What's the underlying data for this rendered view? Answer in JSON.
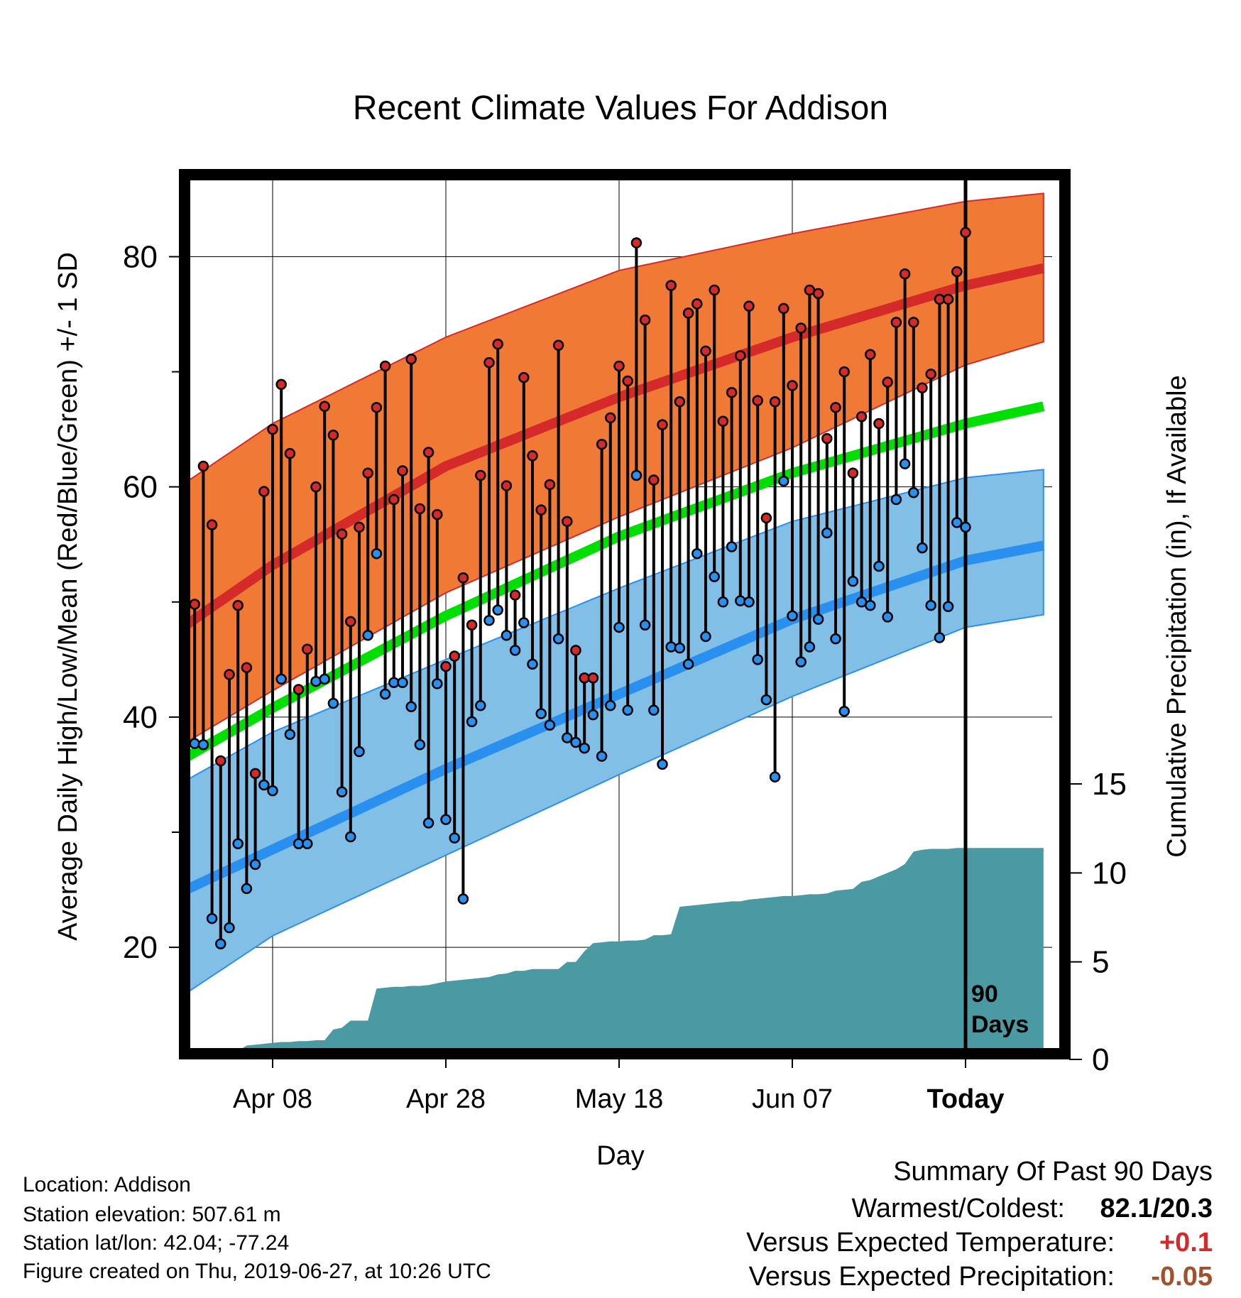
{
  "chart_data": {
    "type": "line",
    "title": "Recent Climate Values For Addison",
    "xlabel": "Day",
    "ylabel_left": "Average Daily High/Low/Mean (Red/Blue/Green) +/- 1 SD",
    "ylabel_right": "Cumulative Precipitation (in), If Available",
    "x_range_days": [
      -90,
      10
    ],
    "x_ticks": [
      {
        "day": -80,
        "label": "Apr 08"
      },
      {
        "day": -60,
        "label": "Apr 28"
      },
      {
        "day": -40,
        "label": "May 18"
      },
      {
        "day": -20,
        "label": "Jun 07"
      },
      {
        "day": 0,
        "label": "Today"
      }
    ],
    "ylim_temp": [
      11,
      87
    ],
    "y_ticks_temp": [
      20,
      40,
      60,
      80
    ],
    "ylim_precip": [
      0,
      15
    ],
    "y_ticks_precip": [
      0,
      5,
      10,
      15
    ],
    "today_marker": {
      "day": 0,
      "label_line1": "90",
      "label_line2": "Days"
    },
    "normal_band_days": [
      -90,
      -80,
      -60,
      -40,
      -20,
      0,
      9
    ],
    "normal_high_mean": [
      48.0,
      53.2,
      61.8,
      67.8,
      73.0,
      77.5,
      79.0
    ],
    "normal_high_upper": [
      60.4,
      65.5,
      73.0,
      78.8,
      82.0,
      84.8,
      85.5
    ],
    "normal_high_lower": [
      37.8,
      42.3,
      50.8,
      57.4,
      63.4,
      70.6,
      72.6
    ],
    "normal_mean": [
      36.5,
      40.8,
      48.8,
      55.7,
      61.2,
      65.5,
      67.0
    ],
    "normal_low_mean": [
      25.0,
      28.5,
      35.5,
      42.0,
      48.5,
      53.6,
      54.9
    ],
    "normal_low_upper": [
      34.5,
      38.7,
      45.0,
      51.2,
      57.0,
      60.8,
      61.5
    ],
    "normal_low_lower": [
      16.0,
      21.0,
      28.0,
      35.0,
      41.8,
      47.8,
      48.9
    ],
    "daily_days": [
      -89,
      -88,
      -87,
      -86,
      -85,
      -84,
      -83,
      -82,
      -81,
      -80,
      -79,
      -78,
      -77,
      -76,
      -75,
      -74,
      -73,
      -72,
      -71,
      -70,
      -69,
      -68,
      -67,
      -66,
      -65,
      -64,
      -63,
      -62,
      -61,
      -60,
      -59,
      -58,
      -57,
      -56,
      -55,
      -54,
      -53,
      -52,
      -51,
      -50,
      -49,
      -48,
      -47,
      -46,
      -45,
      -44,
      -43,
      -42,
      -41,
      -40,
      -39,
      -38,
      -37,
      -36,
      -35,
      -34,
      -33,
      -32,
      -31,
      -30,
      -29,
      -28,
      -27,
      -26,
      -25,
      -24,
      -23,
      -22,
      -21,
      -20,
      -19,
      -18,
      -17,
      -16,
      -15,
      -14,
      -13,
      -12,
      -11,
      -10,
      -9,
      -8,
      -7,
      -6,
      -5,
      -4,
      -3,
      -2,
      -1,
      0
    ],
    "daily_high": [
      49.8,
      61.8,
      56.7,
      36.2,
      43.7,
      49.7,
      44.3,
      35.1,
      59.6,
      65.0,
      68.9,
      62.9,
      42.4,
      45.9,
      60.0,
      67.0,
      64.5,
      55.9,
      48.3,
      56.5,
      61.2,
      66.9,
      70.5,
      58.9,
      61.4,
      71.1,
      58.1,
      63.0,
      57.6,
      44.4,
      45.3,
      52.1,
      48.0,
      61.0,
      70.8,
      72.4,
      60.1,
      50.6,
      69.5,
      62.7,
      58.0,
      60.2,
      72.3,
      57.0,
      45.8,
      43.4,
      43.4,
      63.7,
      66.0,
      70.5,
      69.2,
      81.2,
      74.5,
      60.6,
      65.4,
      77.5,
      67.4,
      75.1,
      75.9,
      71.8,
      77.1,
      65.7,
      68.2,
      71.4,
      75.7,
      67.5,
      57.3,
      67.4,
      75.5,
      68.8,
      73.8,
      77.1,
      76.8,
      64.2,
      66.9,
      70.0,
      61.2,
      66.1,
      71.5,
      65.5,
      69.1,
      74.3,
      78.5,
      74.3,
      68.6,
      69.8,
      76.3,
      76.3,
      78.7,
      82.1
    ],
    "daily_low": [
      37.7,
      37.6,
      22.5,
      20.3,
      21.7,
      29.0,
      25.1,
      27.2,
      34.1,
      33.6,
      43.3,
      38.5,
      29.0,
      29.0,
      43.1,
      43.3,
      41.2,
      33.5,
      29.6,
      37.0,
      47.1,
      54.2,
      42.0,
      43.0,
      43.0,
      40.9,
      37.6,
      30.8,
      42.9,
      31.1,
      29.5,
      24.2,
      39.6,
      41.0,
      48.4,
      49.3,
      47.1,
      45.8,
      48.2,
      44.6,
      40.3,
      39.3,
      46.8,
      38.2,
      37.8,
      37.3,
      40.2,
      36.6,
      41.0,
      47.8,
      40.6,
      61.0,
      48.0,
      40.6,
      35.9,
      46.1,
      46.0,
      44.6,
      54.2,
      47.0,
      52.2,
      50.0,
      54.8,
      50.1,
      50.0,
      45.0,
      41.5,
      34.8,
      60.5,
      48.8,
      44.8,
      46.1,
      48.5,
      56.0,
      46.8,
      40.5,
      51.8,
      50.0,
      49.7,
      53.1,
      48.7,
      58.9,
      62.0,
      59.5,
      54.7,
      49.7,
      46.9,
      49.6,
      56.9,
      56.5
    ],
    "precip_days": [
      -90,
      -84,
      -83,
      -82,
      -81,
      -80,
      -79,
      -78,
      -77,
      -76,
      -75,
      -74,
      -73,
      -72,
      -71,
      -70,
      -69,
      -68,
      -67,
      -66,
      -65,
      -64,
      -63,
      -62,
      -61,
      -60,
      -59,
      -58,
      -57,
      -56,
      -55,
      -54,
      -53,
      -52,
      -51,
      -50,
      -49,
      -48,
      -47,
      -46,
      -45,
      -44,
      -43,
      -42,
      -41,
      -40,
      -39,
      -38,
      -37,
      -36,
      -35,
      -34,
      -33,
      -32,
      -31,
      -30,
      -29,
      -28,
      -27,
      -26,
      -25,
      -24,
      -23,
      -22,
      -21,
      -20,
      -19,
      -18,
      -17,
      -16,
      -15,
      -14,
      -13,
      -12,
      -11,
      -10,
      -9,
      -8,
      -7,
      -6,
      -5,
      -4,
      -3,
      -2,
      -1,
      0,
      9
    ],
    "precip_cumulative": [
      0,
      0,
      0.3,
      0.35,
      0.4,
      0.45,
      0.5,
      0.5,
      0.55,
      0.55,
      0.6,
      0.6,
      1.2,
      1.3,
      1.7,
      1.7,
      1.7,
      3.5,
      3.55,
      3.6,
      3.6,
      3.65,
      3.65,
      3.7,
      3.8,
      3.9,
      3.95,
      4.0,
      4.05,
      4.1,
      4.15,
      4.3,
      4.35,
      4.5,
      4.5,
      4.6,
      4.6,
      4.6,
      4.6,
      5.0,
      5.0,
      5.6,
      6.05,
      6.1,
      6.15,
      6.15,
      6.2,
      6.2,
      6.25,
      6.5,
      6.5,
      6.55,
      8.1,
      8.15,
      8.2,
      8.25,
      8.3,
      8.35,
      8.4,
      8.4,
      8.5,
      8.55,
      8.6,
      8.65,
      8.7,
      8.7,
      8.75,
      8.8,
      8.8,
      8.85,
      9.0,
      9.05,
      9.1,
      9.5,
      9.6,
      9.8,
      10.0,
      10.2,
      10.5,
      11.2,
      11.3,
      11.35,
      11.35,
      11.35,
      11.4,
      11.4,
      11.4
    ]
  },
  "info": {
    "location": "Location: Addison",
    "elevation": "Station elevation: 507.61 m",
    "latlon": "Station lat/lon: 42.04; -77.24",
    "created": "Figure created on Thu, 2019-06-27, at 10:26 UTC"
  },
  "summary": {
    "heading": "Summary Of Past 90 Days",
    "warm_cold_label": "Warmest/Coldest:",
    "warm_cold_value": "82.1/20.3",
    "temp_label": "Versus Expected Temperature:",
    "temp_value": "+0.1",
    "precip_label": "Versus Expected Precipitation:",
    "precip_value": "-0.05"
  },
  "colors": {
    "high_band": "#f07a35",
    "high_line": "#d42a2a",
    "low_band": "#82bfe6",
    "low_line": "#2a90f0",
    "mean_line": "#00e000",
    "precip_fill": "#4a9aa4",
    "high_dot": "#d42a2a",
    "low_dot": "#2a90f0",
    "temp_delta": "#d42a2a",
    "precip_delta": "#a0522d"
  }
}
